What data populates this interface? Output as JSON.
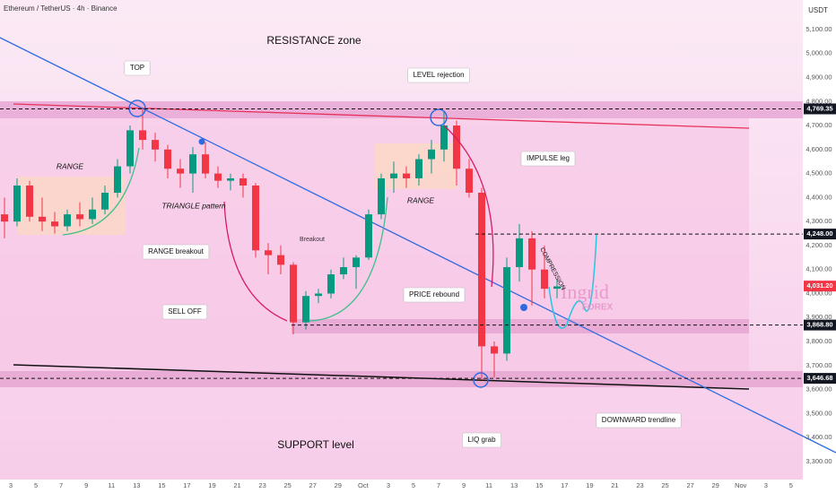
{
  "header": {
    "symbol": "Ethereum / TetherUS · 4h · Binance",
    "currency": "USDT"
  },
  "chart_data": {
    "type": "candlestick",
    "open": [
      4330,
      4300,
      4450,
      4320,
      4300,
      4280,
      4330,
      4310,
      4350,
      4420,
      4530,
      4680,
      4640,
      4600,
      4520,
      4500,
      4580,
      4500,
      4470,
      4480,
      4450,
      4180,
      4160,
      4120,
      3880,
      3990,
      4000,
      4080,
      4110,
      4150,
      4330,
      4480,
      4500,
      4480,
      4560,
      4600,
      4700,
      4520,
      4420,
      3780,
      3750,
      4110,
      4230,
      4100,
      4020
    ],
    "high": [
      4400,
      4480,
      4470,
      4400,
      4340,
      4350,
      4380,
      4400,
      4450,
      4560,
      4700,
      4770,
      4670,
      4620,
      4560,
      4610,
      4630,
      4530,
      4500,
      4500,
      4460,
      4210,
      4200,
      4130,
      4010,
      4020,
      4100,
      4150,
      4160,
      4350,
      4500,
      4550,
      4530,
      4580,
      4640,
      4760,
      4720,
      4560,
      4440,
      3800,
      4150,
      4290,
      4260,
      4200,
      4060
    ],
    "low": [
      4230,
      4280,
      4300,
      4260,
      4250,
      4260,
      4280,
      4290,
      4330,
      4400,
      4500,
      4600,
      4550,
      4480,
      4440,
      4420,
      4480,
      4440,
      4430,
      4400,
      4150,
      4080,
      4080,
      3830,
      3850,
      3960,
      3980,
      4060,
      4020,
      4140,
      4310,
      4420,
      4440,
      4450,
      4500,
      4550,
      4450,
      4400,
      3640,
      3650,
      3720,
      4050,
      3950,
      3980,
      3980
    ],
    "close": [
      4300,
      4450,
      4320,
      4300,
      4280,
      4330,
      4310,
      4350,
      4420,
      4530,
      4680,
      4640,
      4600,
      4520,
      4500,
      4580,
      4500,
      4470,
      4480,
      4450,
      4180,
      4160,
      4120,
      3880,
      3990,
      4000,
      4080,
      4110,
      4150,
      4330,
      4480,
      4500,
      4480,
      4560,
      4600,
      4700,
      4520,
      4420,
      3780,
      3750,
      4110,
      4230,
      4100,
      4020,
      4030
    ],
    "colors": {
      "up": "#089981",
      "down": "#f23645"
    },
    "ylim": [
      3225,
      5223
    ],
    "yticks": [
      {
        "value": 3300,
        "label": "3,300.00"
      },
      {
        "value": 3400,
        "label": "3,400.00"
      },
      {
        "value": 3500,
        "label": "3,500.00"
      },
      {
        "value": 3600,
        "label": "3,600.00"
      },
      {
        "value": 3700,
        "label": "3,700.00"
      },
      {
        "value": 3800,
        "label": "3,800.00"
      },
      {
        "value": 3900,
        "label": "3,900.00"
      },
      {
        "value": 4000,
        "label": "4,000.00"
      },
      {
        "value": 4100,
        "label": "4,100.00"
      },
      {
        "value": 4200,
        "label": "4,200.00"
      },
      {
        "value": 4300,
        "label": "4,300.00"
      },
      {
        "value": 4400,
        "label": "4,400.00"
      },
      {
        "value": 4500,
        "label": "4,500.00"
      },
      {
        "value": 4600,
        "label": "4,600.00"
      },
      {
        "value": 4700,
        "label": "4,700.00"
      },
      {
        "value": 4800,
        "label": "4,800.00"
      },
      {
        "value": 4900,
        "label": "4,900.00"
      },
      {
        "value": 5000,
        "label": "5,000.00"
      },
      {
        "value": 5100,
        "label": "5,100.00"
      }
    ],
    "x_labels": [
      "3",
      "5",
      "7",
      "9",
      "11",
      "13",
      "15",
      "17",
      "19",
      "21",
      "23",
      "25",
      "27",
      "29",
      "Oct",
      "3",
      "5",
      "7",
      "9",
      "11",
      "13",
      "15",
      "17",
      "19",
      "21",
      "23",
      "25",
      "27",
      "29",
      "Nov",
      "3",
      "5"
    ],
    "price_tags": [
      {
        "value": 4769.35,
        "label": "4,769.35",
        "color": "#131722"
      },
      {
        "value": 4248,
        "label": "4,248.00",
        "color": "#131722"
      },
      {
        "value": 4031.2,
        "label": "4,031.20",
        "color": "#f23645"
      },
      {
        "value": 3868.8,
        "label": "3,868.80",
        "color": "#131722"
      },
      {
        "value": 3646.68,
        "label": "3,646.68",
        "color": "#131722"
      }
    ]
  },
  "annotations": [
    "RESISTANCE zone",
    "TOP",
    "LEVEL rejection",
    "RANGE",
    "TRIANGLE pattern",
    "RANGE breakout",
    "SELL OFF",
    "Breakout",
    "PRICE rebound",
    "RANGE",
    "IMPULSE leg",
    "COMPRESSION",
    "DOWNWARD trendline",
    "SUPPORT level",
    "LIQ grab"
  ],
  "logo": {
    "name": "Ingrid",
    "sub": "FOREX"
  }
}
